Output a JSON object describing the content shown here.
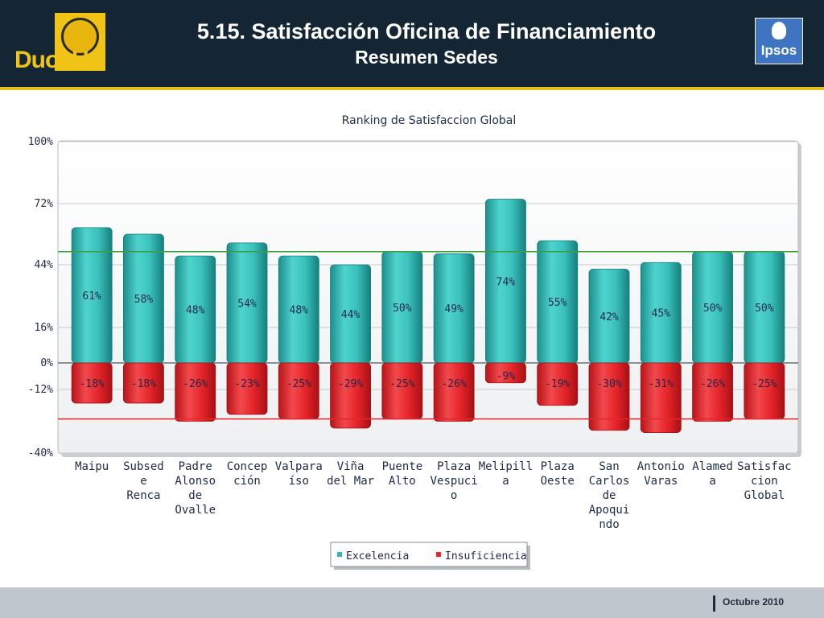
{
  "header": {
    "title": "5.15. Satisfacción Oficina de Financiamiento",
    "subtitle": "Resumen Sedes",
    "logo_left": "DuocUC",
    "logo_right": "Ipsos"
  },
  "footer": {
    "date": "Octubre 2010"
  },
  "colors": {
    "header_bg": "#142634",
    "accent_yellow": "#e3c01f",
    "excelencia": "#2fb8b4",
    "insuficiencia": "#e8262b",
    "ref_green": "#3aa23a",
    "ref_red": "#e8262b"
  },
  "chart_data": {
    "type": "bar",
    "title": "Ranking de Satisfaccion Global",
    "categories": [
      [
        "Maipu"
      ],
      [
        "Subsed",
        "e",
        "Renca"
      ],
      [
        "Padre",
        "Alonso",
        "de",
        "Ovalle"
      ],
      [
        "Concep",
        "ción"
      ],
      [
        "Valpara",
        "íso"
      ],
      [
        "Viña",
        "del Mar"
      ],
      [
        "Puente",
        "Alto"
      ],
      [
        "Plaza",
        "Vespuci",
        "o"
      ],
      [
        "Melipill",
        "a"
      ],
      [
        "Plaza",
        "Oeste"
      ],
      [
        "San",
        "Carlos",
        "de",
        "Apoqui",
        "ndo"
      ],
      [
        "Antonio",
        "Varas"
      ],
      [
        "Alamed",
        "a"
      ],
      [
        "Satisfac",
        "cion",
        "Global"
      ]
    ],
    "series": [
      {
        "name": "Excelencia",
        "values": [
          61,
          58,
          48,
          54,
          48,
          44,
          50,
          49,
          74,
          55,
          42,
          45,
          50,
          50
        ],
        "labels": [
          "61%",
          "58%",
          "48%",
          "54%",
          "48%",
          "44%",
          "50%",
          "49%",
          "74%",
          "55%",
          "42%",
          "45%",
          "50%",
          "50%"
        ]
      },
      {
        "name": "Insuficiencia",
        "values": [
          -18,
          -18,
          -26,
          -23,
          -25,
          -29,
          -25,
          -26,
          -9,
          -19,
          -30,
          -31,
          -26,
          -25
        ],
        "labels": [
          "-18%",
          "-18%",
          "-26%",
          "-23%",
          "-25%",
          "-29%",
          "-25%",
          "-26%",
          "-9%",
          "-19%",
          "-30%",
          "-31%",
          "-26%",
          "-25%"
        ]
      }
    ],
    "y_ticks": [
      100,
      72,
      44,
      16,
      0,
      -12,
      -40
    ],
    "y_tick_labels": [
      "100%",
      "72%",
      "44%",
      "16%",
      "0%",
      "-12%",
      "-40%"
    ],
    "ylim": [
      -40,
      100
    ],
    "reference_lines": [
      50,
      -25
    ],
    "legend": {
      "position": "bottom"
    },
    "grid": true
  }
}
